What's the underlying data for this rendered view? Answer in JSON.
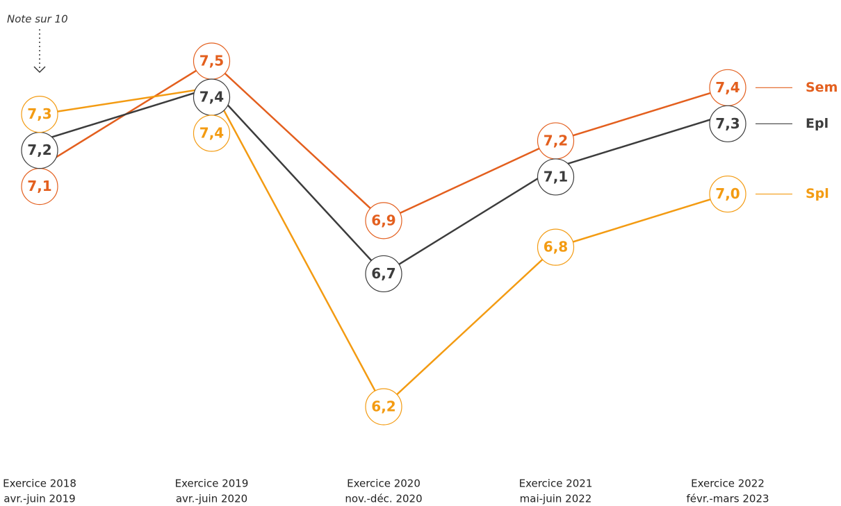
{
  "chart_data": {
    "type": "line",
    "y_label": "Note sur 10",
    "categories": [
      [
        "Exercice 2018",
        "avr.-juin 2019"
      ],
      [
        "Exercice 2019",
        "avr.-juin 2020"
      ],
      [
        "Exercice 2020",
        "nov.-déc. 2020"
      ],
      [
        "Exercice 2021",
        "mai-juin 2022"
      ],
      [
        "Exercice 2022",
        "févr.-mars 2023"
      ]
    ],
    "series": [
      {
        "name": "Sem",
        "color": "#e35f1e",
        "values": [
          7.1,
          7.5,
          6.9,
          7.2,
          7.4
        ],
        "value_labels": [
          "7,1",
          "7,5",
          "6,9",
          "7,2",
          "7,4"
        ]
      },
      {
        "name": "Epl",
        "color": "#3c3c3c",
        "values": [
          7.2,
          7.4,
          6.7,
          7.1,
          7.3
        ],
        "value_labels": [
          "7,2",
          "7,4",
          "6,7",
          "7,1",
          "7,3"
        ]
      },
      {
        "name": "Spl",
        "color": "#f39b12",
        "values": [
          7.3,
          7.4,
          6.2,
          6.8,
          7.0
        ],
        "value_labels": [
          "7,3",
          "7,4",
          "6,2",
          "6,8",
          "7,0"
        ]
      }
    ],
    "ylim": [
      6,
      7.6
    ]
  }
}
